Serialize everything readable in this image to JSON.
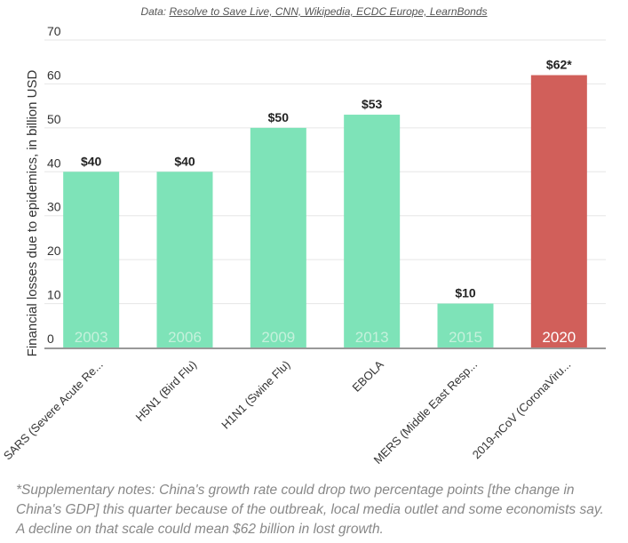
{
  "source": {
    "prefix": "Data: ",
    "links": "Resolve to Save Live, CNN, Wikipedia, ECDC Europe, LearnBonds"
  },
  "chart_data": {
    "type": "bar",
    "ylabel": "Financial losses due to epidemics, in billion USD",
    "ylim": [
      0,
      70
    ],
    "yticks": [
      0,
      10,
      20,
      30,
      40,
      50,
      60,
      70
    ],
    "grid": true,
    "categories": [
      "SARS (Severe Acute Re...",
      "H5N1 (Bird Flu)",
      "H1N1 (Swine Flu)",
      "EBOLA",
      "MERS (Middle East Resp...",
      "2019-nCoV (CoronaViru..."
    ],
    "years": [
      "2003",
      "2006",
      "2009",
      "2013",
      "2015",
      "2020"
    ],
    "values": [
      40,
      40,
      50,
      53,
      10,
      62
    ],
    "data_labels": [
      "$40",
      "$40",
      "$50",
      "$53",
      "$10",
      "$62*"
    ],
    "colors": {
      "default": "#7ee3b8",
      "highlight": "#d15f5a",
      "year_on_default": "#c5f1dc",
      "year_on_highlight": "#ffffff"
    },
    "highlight_index": 5
  },
  "notes": "*Supplementary notes: China's growth rate could drop two percentage points [the change in China's GDP] this quarter because of the outbreak, local media outlet and some economists say. A decline on that scale could mean $62 billion in lost growth."
}
